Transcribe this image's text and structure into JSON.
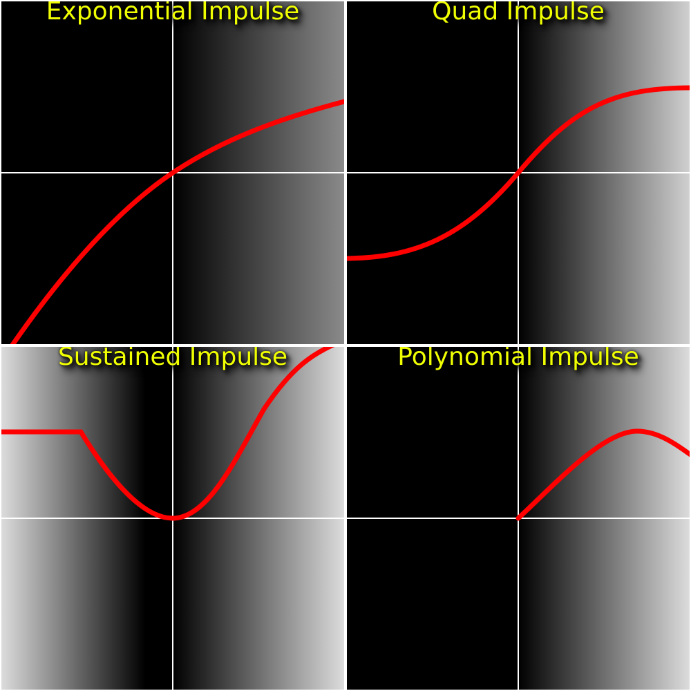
{
  "panels": [
    {
      "title": "Exponential Impulse"
    },
    {
      "title": "Quad Impulse"
    },
    {
      "title": "Sustained Impulse"
    },
    {
      "title": "Polynomial Impulse"
    }
  ]
}
